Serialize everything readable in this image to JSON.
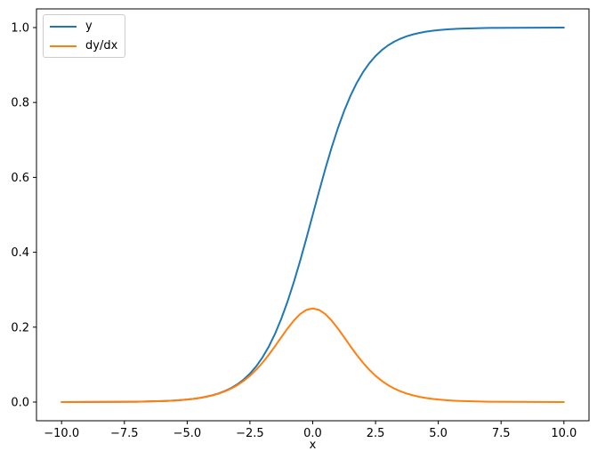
{
  "figure": {
    "background_color": "#ffffff",
    "axes_edge_color": "#000000"
  },
  "chart_data": {
    "type": "line",
    "title": "",
    "xlabel": "x",
    "ylabel": "",
    "grid": false,
    "legend_position": "upper left",
    "xlim": [
      -11,
      11
    ],
    "ylim": [
      -0.05,
      1.05
    ],
    "x_ticks": {
      "values": [
        -10,
        -7.5,
        -5,
        -2.5,
        0,
        2.5,
        5,
        7.5,
        10
      ],
      "labels": [
        "−10.0",
        "−7.5",
        "−5.0",
        "−2.5",
        "0.0",
        "2.5",
        "5.0",
        "7.5",
        "10.0"
      ]
    },
    "y_ticks": {
      "values": [
        0,
        0.2,
        0.4,
        0.6,
        0.8,
        1.0
      ],
      "labels": [
        "0.0",
        "0.2",
        "0.4",
        "0.6",
        "0.8",
        "1.0"
      ]
    },
    "x": [
      -10,
      -9,
      -8,
      -7,
      -6,
      -5.75,
      -5.5,
      -5.25,
      -5,
      -4.75,
      -4.5,
      -4.25,
      -4,
      -3.75,
      -3.5,
      -3.25,
      -3,
      -2.75,
      -2.5,
      -2.25,
      -2,
      -1.75,
      -1.5,
      -1.25,
      -1,
      -0.75,
      -0.5,
      -0.25,
      0,
      0.25,
      0.5,
      0.75,
      1,
      1.25,
      1.5,
      1.75,
      2,
      2.25,
      2.5,
      2.75,
      3,
      3.25,
      3.5,
      3.75,
      4,
      4.25,
      4.5,
      4.75,
      5,
      5.25,
      5.5,
      5.75,
      6,
      7,
      8,
      9,
      10
    ],
    "series": [
      {
        "name": "y",
        "color": "#1f77b4",
        "values": [
          4.5e-05,
          0.000123,
          0.000335,
          0.000911,
          0.002473,
          0.003173,
          0.00407,
          0.005222,
          0.006693,
          0.008577,
          0.010987,
          0.014064,
          0.017986,
          0.022977,
          0.029312,
          0.037327,
          0.047426,
          0.060087,
          0.075858,
          0.095349,
          0.119203,
          0.148047,
          0.182426,
          0.2227,
          0.268941,
          0.320821,
          0.377541,
          0.437823,
          0.5,
          0.562177,
          0.622459,
          0.679179,
          0.731059,
          0.7773,
          0.817574,
          0.851953,
          0.880797,
          0.904651,
          0.924142,
          0.939913,
          0.952574,
          0.962673,
          0.970688,
          0.977023,
          0.982014,
          0.985936,
          0.989013,
          0.991423,
          0.993307,
          0.994778,
          0.99593,
          0.996827,
          0.997527,
          0.999089,
          0.999665,
          0.999877,
          0.999955
        ]
      },
      {
        "name": "dy/dx",
        "color": "#ff7f0e",
        "values": [
          4.5e-05,
          0.000123,
          0.000335,
          0.00091,
          0.002467,
          0.003163,
          0.004053,
          0.005195,
          0.006648,
          0.008503,
          0.010866,
          0.013866,
          0.017663,
          0.022449,
          0.028453,
          0.035934,
          0.045177,
          0.056477,
          0.070104,
          0.086257,
          0.104994,
          0.12613,
          0.149146,
          0.173105,
          0.196612,
          0.217895,
          0.235004,
          0.246134,
          0.25,
          0.246134,
          0.235004,
          0.217895,
          0.196612,
          0.173105,
          0.149146,
          0.12613,
          0.104994,
          0.086257,
          0.070104,
          0.056477,
          0.045177,
          0.035934,
          0.028453,
          0.022449,
          0.017663,
          0.013866,
          0.010866,
          0.008503,
          0.006648,
          0.005195,
          0.004053,
          0.003163,
          0.002467,
          0.00091,
          0.000335,
          0.000123,
          4.5e-05
        ]
      }
    ]
  }
}
